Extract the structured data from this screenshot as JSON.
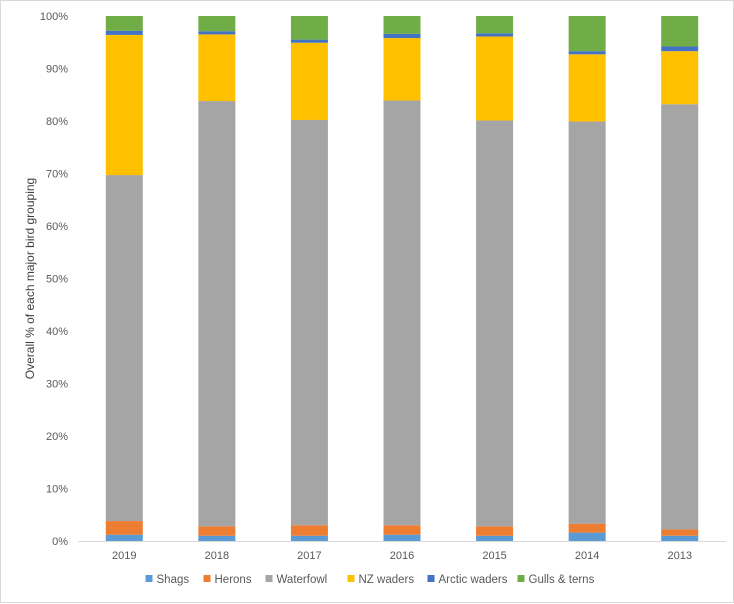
{
  "chart_data": {
    "type": "bar",
    "stacked": true,
    "orientation": "vertical",
    "categories": [
      "2019",
      "2018",
      "2017",
      "2016",
      "2015",
      "2014",
      "2013"
    ],
    "ylabel": "Overall % of each major bird grouping",
    "xlabel": "",
    "ylim": [
      0,
      100
    ],
    "y_ticks": [
      "0%",
      "10%",
      "20%",
      "30%",
      "40%",
      "50%",
      "60%",
      "70%",
      "80%",
      "90%",
      "100%"
    ],
    "grid": false,
    "legend_position": "bottom",
    "series": [
      {
        "name": "Shags",
        "color": "#5B9BD5",
        "values": [
          1.2,
          1.0,
          1.0,
          1.2,
          1.0,
          1.6,
          1.0
        ]
      },
      {
        "name": "Herons",
        "color": "#ED7D31",
        "values": [
          2.6,
          1.8,
          2.0,
          1.8,
          1.8,
          1.7,
          1.2
        ]
      },
      {
        "name": "Waterfowl",
        "color": "#A5A5A5",
        "values": [
          65.9,
          81.0,
          77.2,
          80.9,
          77.3,
          76.6,
          81.0
        ]
      },
      {
        "name": "NZ waders",
        "color": "#FFC000",
        "values": [
          26.7,
          12.7,
          14.7,
          11.9,
          16.0,
          12.8,
          10.1
        ]
      },
      {
        "name": "Arctic waders",
        "color": "#4472C4",
        "values": [
          0.8,
          0.6,
          0.6,
          0.8,
          0.6,
          0.6,
          0.9
        ]
      },
      {
        "name": "Gulls & terns",
        "color": "#70AD47",
        "values": [
          2.8,
          2.9,
          4.5,
          3.4,
          3.3,
          6.7,
          5.8
        ]
      }
    ]
  }
}
